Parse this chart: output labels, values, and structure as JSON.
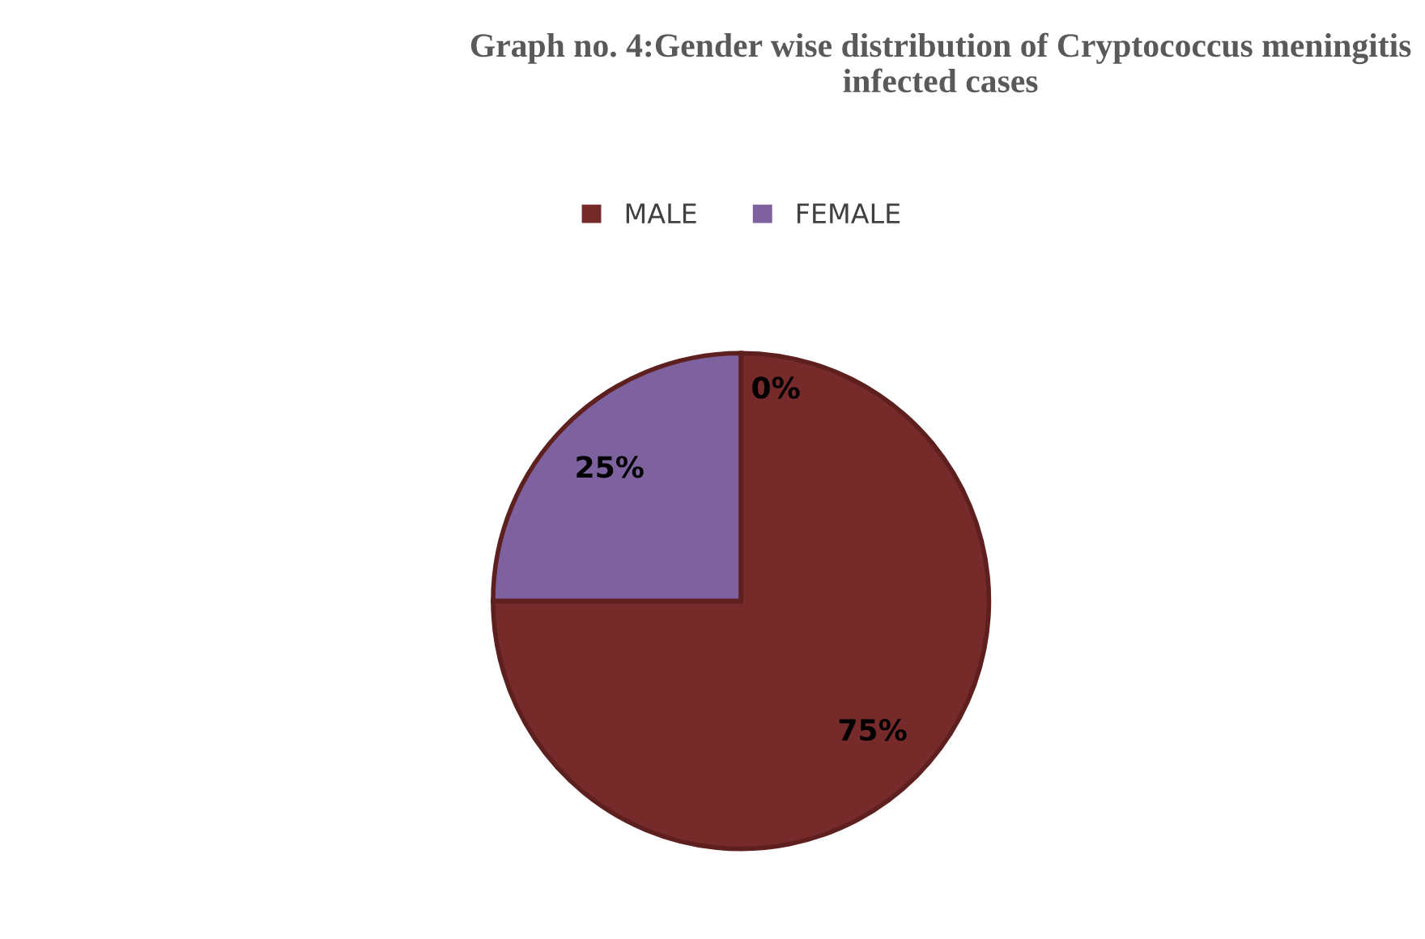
{
  "chart_data": {
    "type": "pie",
    "title": "Graph no. 4:Gender wise distribution of Cryptococcus meningitis infected cases",
    "categories": [
      "MALE",
      "FEMALE",
      null
    ],
    "values": [
      75,
      25,
      0
    ],
    "colors": [
      "#772a2a",
      "#7e62a0",
      "#4f81bd"
    ],
    "value_labels": [
      "75%",
      "25%",
      "0%"
    ],
    "legend": "top"
  }
}
